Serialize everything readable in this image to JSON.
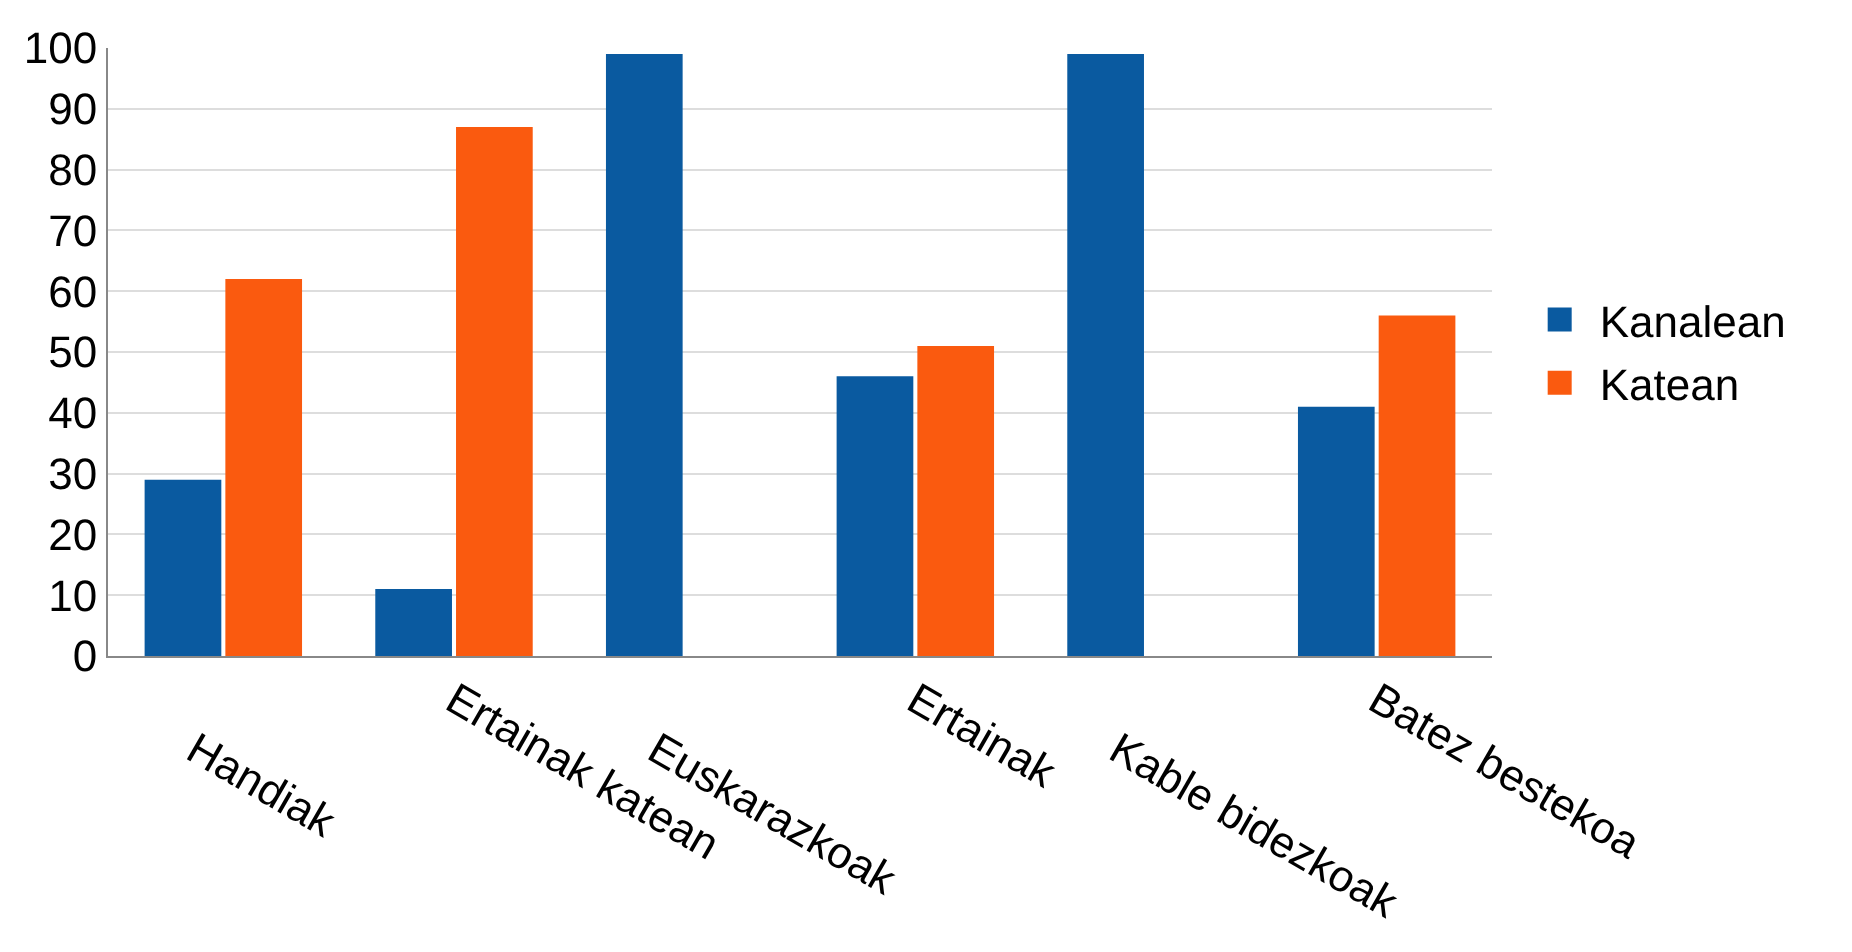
{
  "chart_data": {
    "type": "bar",
    "categories": [
      "Handiak",
      "Ertainak katean",
      "Euskarazkoak",
      "Ertainak",
      "Kable bidezkoak",
      "Batez bestekoa"
    ],
    "series": [
      {
        "name": "Kanalean",
        "color": "#0a5aa0",
        "values": [
          29,
          11,
          99,
          46,
          99,
          41
        ]
      },
      {
        "name": "Katean",
        "color": "#fa5a0f",
        "values": [
          62,
          87,
          null,
          51,
          null,
          56
        ]
      }
    ],
    "ylim": [
      0,
      100
    ],
    "yticks": [
      0,
      10,
      20,
      30,
      40,
      50,
      60,
      70,
      80,
      90,
      100
    ],
    "grid": "y",
    "legend": "right"
  }
}
